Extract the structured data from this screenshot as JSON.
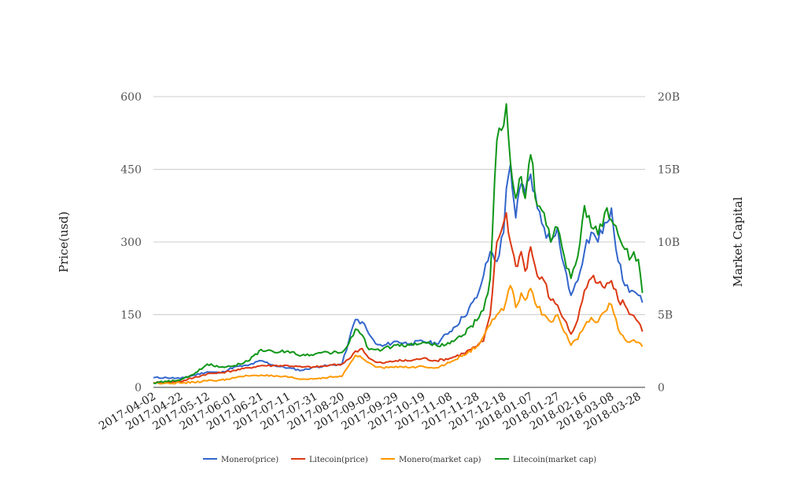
{
  "chart_data": {
    "type": "line",
    "ylabel": "Price(usd)",
    "y2label": "Market Capital",
    "ylim": [
      0,
      600
    ],
    "y2lim": [
      0,
      20000000000
    ],
    "yticks": [
      "0",
      "150",
      "300",
      "450",
      "600"
    ],
    "y2ticks": [
      "0",
      "5B",
      "10B",
      "15B",
      "20B"
    ],
    "xlim": [
      "2017-04-02",
      "2018-04-02"
    ],
    "xticks": [
      "2017-04-02",
      "2017-04-22",
      "2017-05-12",
      "2017-06-01",
      "2017-06-21",
      "2017-07-11",
      "2017-07-31",
      "2017-08-20",
      "2017-09-09",
      "2017-09-29",
      "2017-10-19",
      "2017-11-08",
      "2017-11-28",
      "2017-12-18",
      "2018-01-07",
      "2018-01-27",
      "2018-02-16",
      "2018-03-08",
      "2018-03-28"
    ],
    "grid": true,
    "legend_position": "bottom",
    "x": [
      "2017-04-02",
      "2017-04-12",
      "2017-04-22",
      "2017-05-02",
      "2017-05-12",
      "2017-05-22",
      "2017-06-01",
      "2017-06-11",
      "2017-06-21",
      "2017-07-01",
      "2017-07-11",
      "2017-07-21",
      "2017-07-31",
      "2017-08-10",
      "2017-08-20",
      "2017-08-25",
      "2017-08-30",
      "2017-09-04",
      "2017-09-09",
      "2017-09-14",
      "2017-09-19",
      "2017-09-29",
      "2017-10-09",
      "2017-10-19",
      "2017-10-29",
      "2017-11-08",
      "2017-11-18",
      "2017-11-28",
      "2017-12-03",
      "2017-12-08",
      "2017-12-13",
      "2017-12-18",
      "2017-12-20",
      "2017-12-23",
      "2017-12-27",
      "2017-12-31",
      "2018-01-03",
      "2018-01-07",
      "2018-01-12",
      "2018-01-17",
      "2018-01-22",
      "2018-01-27",
      "2018-02-01",
      "2018-02-06",
      "2018-02-11",
      "2018-02-16",
      "2018-02-21",
      "2018-02-26",
      "2018-03-03",
      "2018-03-08",
      "2018-03-13",
      "2018-03-18",
      "2018-03-23",
      "2018-03-28",
      "2018-03-31"
    ],
    "series": [
      {
        "name": "Monero(price)",
        "axis": "left",
        "color": "#3366cc",
        "values": [
          20,
          20,
          18,
          25,
          32,
          30,
          42,
          45,
          55,
          45,
          40,
          35,
          42,
          45,
          48,
          95,
          140,
          135,
          110,
          90,
          85,
          95,
          90,
          95,
          90,
          115,
          145,
          185,
          230,
          280,
          260,
          320,
          410,
          460,
          350,
          420,
          400,
          440,
          370,
          330,
          300,
          330,
          250,
          190,
          220,
          280,
          320,
          300,
          340,
          370,
          260,
          210,
          200,
          190,
          175
        ]
      },
      {
        "name": "Litecoin(price)",
        "axis": "left",
        "color": "#dc3912",
        "values": [
          10,
          10,
          12,
          20,
          28,
          30,
          35,
          40,
          45,
          45,
          45,
          42,
          42,
          45,
          48,
          58,
          75,
          80,
          60,
          52,
          50,
          55,
          55,
          60,
          55,
          60,
          70,
          85,
          95,
          150,
          300,
          340,
          360,
          300,
          250,
          280,
          240,
          290,
          230,
          220,
          180,
          170,
          140,
          110,
          140,
          200,
          225,
          215,
          205,
          220,
          180,
          170,
          150,
          135,
          115
        ]
      },
      {
        "name": "Monero(market cap)",
        "axis": "right",
        "color": "#ff9900",
        "values": [
          300000000,
          300000000,
          300000000,
          350000000,
          450000000,
          500000000,
          650000000,
          800000000,
          850000000,
          750000000,
          700000000,
          550000000,
          600000000,
          700000000,
          750000000,
          1500000000,
          2200000000,
          2000000000,
          1700000000,
          1400000000,
          1350000000,
          1450000000,
          1350000000,
          1450000000,
          1350000000,
          1700000000,
          2200000000,
          2800000000,
          3500000000,
          4300000000,
          5000000000,
          5300000000,
          6000000000,
          7000000000,
          5500000000,
          6500000000,
          6000000000,
          6800000000,
          5500000000,
          5000000000,
          4500000000,
          5000000000,
          3800000000,
          2900000000,
          3300000000,
          4200000000,
          4800000000,
          4500000000,
          5200000000,
          5700000000,
          4000000000,
          3300000000,
          3200000000,
          3100000000,
          2800000000
        ]
      },
      {
        "name": "Litecoin(market cap)",
        "axis": "right",
        "color": "#109618",
        "values": [
          300000000,
          400000000,
          500000000,
          900000000,
          1600000000,
          1400000000,
          1500000000,
          1800000000,
          2600000000,
          2400000000,
          2500000000,
          2200000000,
          2300000000,
          2400000000,
          2400000000,
          3000000000,
          4000000000,
          3600000000,
          2600000000,
          2600000000,
          2600000000,
          2900000000,
          2900000000,
          3100000000,
          2900000000,
          3000000000,
          3600000000,
          4600000000,
          5300000000,
          7500000000,
          17000000000,
          18000000000,
          19500000000,
          15500000000,
          13000000000,
          14500000000,
          13000000000,
          16000000000,
          12500000000,
          12000000000,
          10000000000,
          11000000000,
          9000000000,
          7500000000,
          9000000000,
          12500000000,
          11000000000,
          10500000000,
          12000000000,
          11500000000,
          10500000000,
          9500000000,
          9000000000,
          8800000000,
          6500000000
        ]
      }
    ]
  }
}
